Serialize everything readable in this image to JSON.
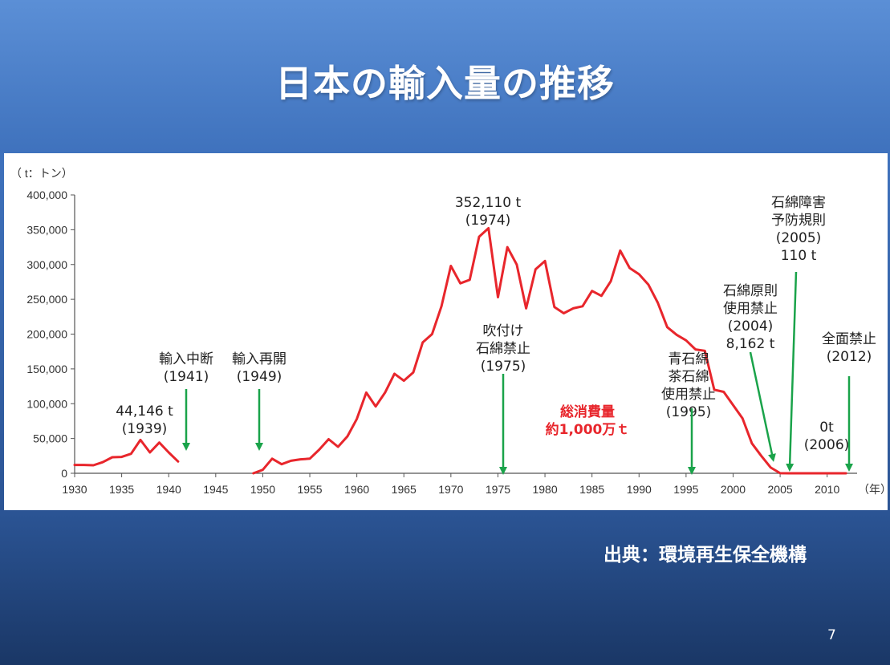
{
  "slide": {
    "title": "日本の輸入量の推移",
    "source": "出典：環境再生保全機構",
    "page_number": "7"
  },
  "colors": {
    "line": "#e8262c",
    "arrow": "#1aa34a",
    "background_top": "#5b8fd6",
    "background_bottom": "#1a3766"
  },
  "chart_data": {
    "type": "line",
    "unit_label": "（ t：トン）",
    "x_unit_label": "（年）",
    "ylim": [
      0,
      400000
    ],
    "xlim": [
      1930,
      2012
    ],
    "y_ticks": [
      "0",
      "50,000",
      "100,000",
      "150,000",
      "200,000",
      "250,000",
      "300,000",
      "350,000",
      "400,000"
    ],
    "x_ticks": [
      "1930",
      "1935",
      "1940",
      "1945",
      "1950",
      "1955",
      "1960",
      "1965",
      "1970",
      "1975",
      "1980",
      "1985",
      "1990",
      "1995",
      "2000",
      "2005",
      "2010"
    ],
    "grid": false,
    "series": [
      {
        "segments": [
          [
            [
              1930,
              12000
            ],
            [
              1931,
              12000
            ],
            [
              1932,
              11500
            ],
            [
              1933,
              16000
            ],
            [
              1934,
              23000
            ],
            [
              1935,
              23500
            ],
            [
              1936,
              28000
            ],
            [
              1937,
              48000
            ],
            [
              1938,
              30000
            ],
            [
              1939,
              44146
            ],
            [
              1940,
              30000
            ],
            [
              1941,
              17000
            ]
          ],
          [
            [
              1949,
              0
            ],
            [
              1950,
              5000
            ],
            [
              1951,
              21000
            ],
            [
              1952,
              13000
            ],
            [
              1953,
              18000
            ],
            [
              1954,
              20000
            ],
            [
              1955,
              21000
            ],
            [
              1956,
              34000
            ],
            [
              1957,
              49000
            ],
            [
              1958,
              38000
            ],
            [
              1959,
              53000
            ],
            [
              1960,
              78000
            ],
            [
              1961,
              116000
            ],
            [
              1962,
              96000
            ],
            [
              1963,
              116000
            ],
            [
              1964,
              143000
            ],
            [
              1965,
              133000
            ],
            [
              1966,
              145000
            ],
            [
              1967,
              188000
            ],
            [
              1968,
              200000
            ],
            [
              1969,
              240000
            ],
            [
              1970,
              298000
            ],
            [
              1971,
              273000
            ],
            [
              1972,
              278000
            ],
            [
              1973,
              340000
            ],
            [
              1974,
              352110
            ],
            [
              1975,
              253000
            ],
            [
              1976,
              325000
            ],
            [
              1977,
              300000
            ],
            [
              1978,
              237000
            ],
            [
              1979,
              293000
            ],
            [
              1980,
              305000
            ],
            [
              1981,
              239000
            ],
            [
              1982,
              230000
            ],
            [
              1983,
              237000
            ],
            [
              1984,
              240000
            ],
            [
              1985,
              262000
            ],
            [
              1986,
              255000
            ],
            [
              1987,
              276000
            ],
            [
              1988,
              320000
            ],
            [
              1989,
              295000
            ],
            [
              1990,
              286000
            ],
            [
              1991,
              271000
            ],
            [
              1992,
              245000
            ],
            [
              1993,
              210000
            ],
            [
              1994,
              199000
            ],
            [
              1995,
              191000
            ],
            [
              1996,
              178000
            ],
            [
              1997,
              176000
            ],
            [
              1998,
              120000
            ],
            [
              1999,
              117000
            ],
            [
              2000,
              98000
            ],
            [
              2001,
              79000
            ],
            [
              2002,
              43000
            ],
            [
              2003,
              25000
            ],
            [
              2004,
              8162
            ],
            [
              2005,
              110
            ],
            [
              2006,
              0
            ],
            [
              2007,
              0
            ],
            [
              2008,
              0
            ],
            [
              2009,
              0
            ],
            [
              2010,
              0
            ],
            [
              2011,
              0
            ],
            [
              2012,
              0
            ]
          ]
        ]
      }
    ],
    "annotations": [
      {
        "lines": [
          "44,146 t",
          "(1939)"
        ],
        "year": 1939,
        "arrow": false
      },
      {
        "lines": [
          "輸入中断",
          "(1941)"
        ],
        "year": 1941,
        "arrow": true
      },
      {
        "lines": [
          "輸入再開",
          "(1949)"
        ],
        "year": 1949,
        "arrow": true
      },
      {
        "lines": [
          "352,110 t",
          "(1974)"
        ],
        "year": 1974,
        "arrow": false
      },
      {
        "lines": [
          "吹付け",
          "石綿禁止",
          "(1975)"
        ],
        "year": 1975,
        "arrow": true
      },
      {
        "lines": [
          "総消費量",
          "約1,000万ｔ"
        ],
        "highlight": true
      },
      {
        "lines": [
          "青石綿",
          "茶石綿",
          "使用禁止",
          "(1995)"
        ],
        "year": 1995,
        "arrow": true
      },
      {
        "lines": [
          "石綿原則",
          "使用禁止",
          "(2004)",
          "8,162 t"
        ],
        "year": 2004,
        "arrow": true
      },
      {
        "lines": [
          "石綿障害",
          "予防規則",
          "(2005)",
          "110 t"
        ],
        "year": 2005,
        "arrow": true
      },
      {
        "lines": [
          "0t",
          "(2006)"
        ],
        "year": 2006,
        "arrow": false
      },
      {
        "lines": [
          "全面禁止",
          "(2012)"
        ],
        "year": 2012,
        "arrow": true
      }
    ]
  }
}
